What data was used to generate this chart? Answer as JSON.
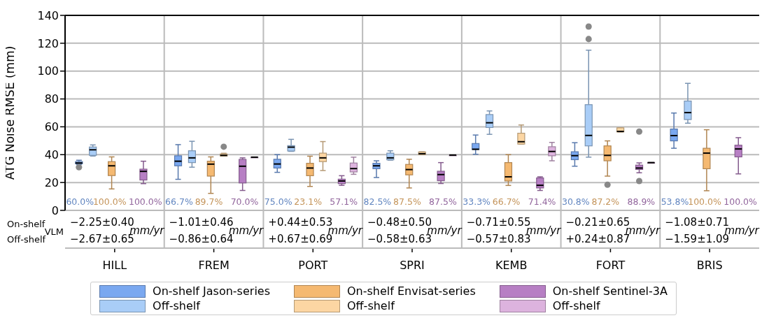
{
  "chart_data": {
    "type": "box",
    "ylabel": "ATG Noise RMSE (mm)",
    "categories": [
      "HILL",
      "FREM",
      "PORT",
      "SPRI",
      "KEMB",
      "FORT",
      "BRIS"
    ],
    "ylim": [
      0,
      140
    ],
    "yticks": [
      0,
      20,
      40,
      60,
      80,
      100,
      120,
      140
    ],
    "grid": true,
    "legend": "bottom",
    "series": [
      {
        "name": "On-shelf Jason-series",
        "color": "#7aa8f0",
        "boxes": [
          {
            "low": 33,
            "q1": 33.5,
            "median": 34,
            "q3": 35,
            "high": 36,
            "outliers": [
              31
            ]
          },
          {
            "low": 22.3,
            "q1": 32,
            "median": 35.3,
            "q3": 39.2,
            "high": 47.2
          },
          {
            "low": 27.3,
            "q1": 30.4,
            "median": 33.3,
            "q3": 36.7,
            "high": 40
          },
          {
            "low": 23.6,
            "q1": 29.9,
            "median": 32,
            "q3": 33.8,
            "high": 35.6
          },
          {
            "low": 40.3,
            "q1": 43.7,
            "median": 43.9,
            "q3": 48,
            "high": 54.1
          },
          {
            "low": 31.7,
            "q1": 36.4,
            "median": 39.3,
            "q3": 42.1,
            "high": 48.6
          },
          {
            "low": 44.6,
            "q1": 49.9,
            "median": 53.7,
            "q3": 58.4,
            "high": 69.9
          }
        ]
      },
      {
        "name": "Off-shelf",
        "color": "#a9cdf7",
        "boxes": [
          {
            "low": 39,
            "q1": 39.5,
            "median": 43.5,
            "q3": 45.5,
            "high": 47
          },
          {
            "low": 31,
            "q1": 34.3,
            "median": 37.7,
            "q3": 42.8,
            "high": 49.6
          },
          {
            "low": 42.4,
            "q1": 42.6,
            "median": 45.4,
            "q3": 46.5,
            "high": 51
          },
          {
            "low": 36.1,
            "q1": 36.3,
            "median": 37.7,
            "q3": 41.1,
            "high": 42.8
          },
          {
            "low": 54.6,
            "q1": 59.5,
            "median": 62.9,
            "q3": 68.8,
            "high": 71.4
          },
          {
            "low": 38.2,
            "q1": 46.3,
            "median": 53.8,
            "q3": 75.9,
            "high": 115,
            "outliers": [
              123,
              132
            ]
          },
          {
            "low": 62.6,
            "q1": 65.2,
            "median": 70.2,
            "q3": 78.5,
            "high": 91.2
          }
        ]
      },
      {
        "name": "On-shelf Envisat-series",
        "color": "#f5b971",
        "boxes": [
          {
            "low": 15.4,
            "q1": 25,
            "median": 32,
            "q3": 35,
            "high": 38.4
          },
          {
            "low": 12.2,
            "q1": 24.6,
            "median": 33.2,
            "q3": 35.3,
            "high": 38.4
          },
          {
            "low": 17.2,
            "q1": 24.9,
            "median": 30.4,
            "q3": 33.8,
            "high": 38.9
          },
          {
            "low": 16.1,
            "q1": 25.5,
            "median": 29.3,
            "q3": 33,
            "high": 36.7
          },
          {
            "low": 17.9,
            "q1": 21.1,
            "median": 24.1,
            "q3": 34.3,
            "high": 40
          },
          {
            "low": 24.6,
            "q1": 35.6,
            "median": 39.5,
            "q3": 46.3,
            "high": 49.9,
            "outliers": [
              18.4
            ]
          },
          {
            "low": 14.1,
            "q1": 29.9,
            "median": 41.1,
            "q3": 44.6,
            "high": 57.9
          }
        ]
      },
      {
        "name": "Off-shelf",
        "color": "#fcd6a3",
        "boxes": [
          null,
          {
            "low": 39,
            "q1": 39,
            "median": 39.5,
            "q3": 40.5,
            "high": 41,
            "outliers": [
              45.7
            ]
          },
          {
            "low": 28.6,
            "q1": 35,
            "median": 37.7,
            "q3": 41.1,
            "high": 49.4
          },
          {
            "low": 40,
            "q1": 40,
            "median": 40.7,
            "q3": 42,
            "high": 42
          },
          {
            "low": 47.6,
            "q1": 47.6,
            "median": 49.3,
            "q3": 55.4,
            "high": 61.3
          },
          {
            "low": 56.3,
            "q1": 56.3,
            "median": 56.7,
            "q3": 59.3,
            "high": 59.3
          },
          null
        ]
      },
      {
        "name": "On-shelf Sentinel-3A",
        "color": "#b77fc4",
        "boxes": [
          {
            "low": 19.2,
            "q1": 21.8,
            "median": 28,
            "q3": 29.6,
            "high": 35.3
          },
          {
            "low": 14.3,
            "q1": 19.7,
            "median": 31.7,
            "q3": 36.6,
            "high": 37.7
          },
          {
            "low": 18,
            "q1": 19.2,
            "median": 21.1,
            "q3": 22.4,
            "high": 24.9
          },
          {
            "low": 19.3,
            "q1": 21.3,
            "median": 25.7,
            "q3": 28.1,
            "high": 34.3
          },
          {
            "low": 14.3,
            "q1": 16.1,
            "median": 18,
            "q3": 23.3,
            "high": 24.1
          },
          {
            "low": 27,
            "q1": 29.4,
            "median": 30.4,
            "q3": 32.5,
            "high": 34.1,
            "outliers": [
              21.1,
              56.6
            ]
          },
          {
            "low": 26.2,
            "q1": 38.4,
            "median": 44.1,
            "q3": 46.8,
            "high": 52.2
          }
        ]
      },
      {
        "name": "Off-shelf",
        "color": "#ddb3de",
        "boxes": [
          null,
          {
            "low": 38.2,
            "q1": 38.2,
            "median": 38.2,
            "q3": 38.2,
            "high": 38.2
          },
          {
            "low": 25.9,
            "q1": 27.6,
            "median": 30,
            "q3": 34,
            "high": 38.2
          },
          {
            "low": 39.7,
            "q1": 39.7,
            "median": 39.7,
            "q3": 39.7,
            "high": 39.7
          },
          {
            "low": 35.6,
            "q1": 39.2,
            "median": 42.3,
            "q3": 45.7,
            "high": 48.8
          },
          {
            "low": 34.3,
            "q1": 34.3,
            "median": 34.3,
            "q3": 34.3,
            "high": 34.3
          },
          null
        ]
      }
    ],
    "annotations": [
      "60.0%",
      "100.0%",
      "100.0%",
      "66.7%",
      "89.7%",
      "70.0%",
      "75.0%",
      "23.1%",
      "57.1%",
      "82.5%",
      "87.5%",
      "87.5%",
      "33.3%",
      "66.7%",
      "71.4%",
      "30.8%",
      "87.2%",
      "88.9%",
      "53.8%",
      "100.0%",
      "100.0%",
      "On-shelf",
      "Off-shelf",
      "VLM",
      "−2.25±0.40",
      "−2.67±0.65",
      "mm/yr",
      "−1.01±0.46",
      "−0.86±0.64",
      "mm/yr",
      "+0.44±0.53",
      "+0.67±0.69",
      "mm/yr",
      "−0.48±0.50",
      "−0.58±0.63",
      "mm/yr",
      "−0.71±0.55",
      "−0.57±0.83",
      "mm/yr",
      "−0.21±0.65",
      "+0.24±0.87",
      "mm/yr",
      "−1.08±0.71",
      "−1.59±1.09",
      "mm/yr"
    ]
  }
}
